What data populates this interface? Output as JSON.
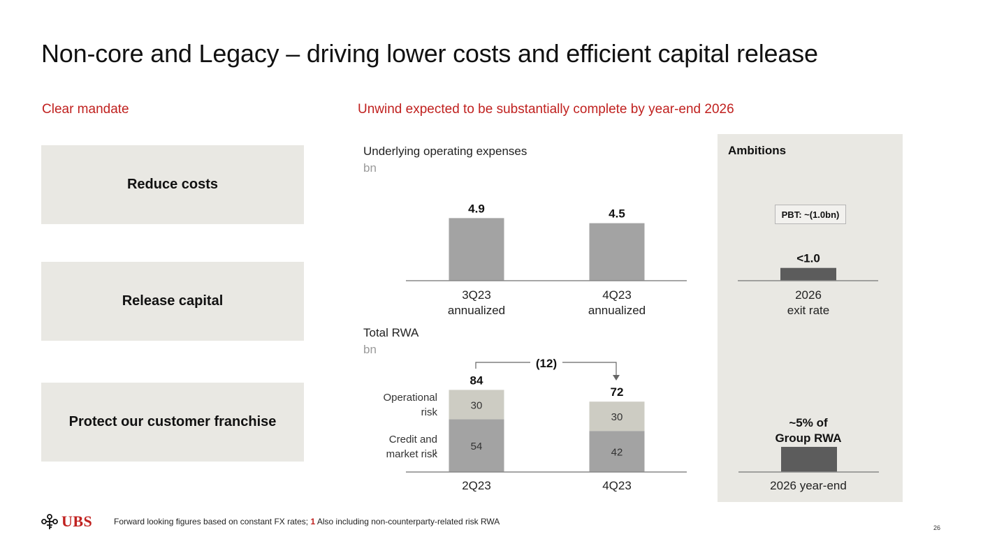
{
  "title": "Non-core and Legacy – driving lower costs and efficient capital release",
  "left_section": {
    "subtitle": "Clear mandate",
    "boxes": [
      "Reduce costs",
      "Release capital",
      "Protect our customer franchise"
    ]
  },
  "right_section": {
    "subtitle": "Unwind expected to be substantially complete by year-end 2026"
  },
  "chart_data": [
    {
      "type": "bar",
      "title": "Underlying operating expenses",
      "unit": "bn",
      "categories": [
        [
          "3Q23",
          "annualized"
        ],
        [
          "4Q23",
          "annualized"
        ]
      ],
      "values": [
        4.9,
        4.5
      ],
      "value_labels": [
        "4.9",
        "4.5"
      ],
      "color": "#a3a3a3",
      "ylim": [
        0,
        5.5
      ]
    },
    {
      "type": "stacked-bar",
      "title": "Total RWA",
      "unit": "bn",
      "categories": [
        "2Q23",
        "4Q23"
      ],
      "series": [
        {
          "name": "Credit and market risk",
          "superscript": "1",
          "values": [
            54,
            42
          ],
          "value_labels": [
            "54",
            "42"
          ],
          "color": "#a3a3a3"
        },
        {
          "name": "Operational risk",
          "values": [
            30,
            30
          ],
          "value_labels": [
            "30",
            "30"
          ],
          "color": "#cdccc3"
        }
      ],
      "series_labels": [
        [
          "Operational",
          "risk"
        ],
        [
          "Credit and",
          "market risk"
        ]
      ],
      "totals": [
        84,
        72
      ],
      "total_labels": [
        "84",
        "72"
      ],
      "change_label": "(12)",
      "ylim": [
        0,
        90
      ]
    },
    {
      "type": "bar",
      "title": "Ambitions",
      "categories": [
        [
          "2026",
          "exit rate"
        ]
      ],
      "values": [
        1.0
      ],
      "value_labels": [
        "<1.0"
      ],
      "annotation": "PBT: ~(1.0bn)",
      "color": "#5c5c5c",
      "ylim": [
        0,
        5.5
      ]
    },
    {
      "type": "bar",
      "categories": [
        "2026 year-end"
      ],
      "values": [
        72
      ],
      "value_labels": [
        [
          "~5% of",
          "Group RWA"
        ]
      ],
      "color": "#5c5c5c",
      "ylim": [
        0,
        155
      ]
    }
  ],
  "footer": {
    "logo_text": "UBS",
    "footnote_main": "Forward looking figures based on constant  FX rates; ",
    "footnote_number": "1",
    "footnote_rest": " Also including non-counterparty-related  risk RWA",
    "page_number": "26"
  },
  "colors": {
    "accent_red": "#c0211f",
    "panel_bg": "#e9e8e3",
    "bar_gray": "#a3a3a3",
    "bar_light": "#cdccc3",
    "bar_dark": "#5c5c5c"
  }
}
